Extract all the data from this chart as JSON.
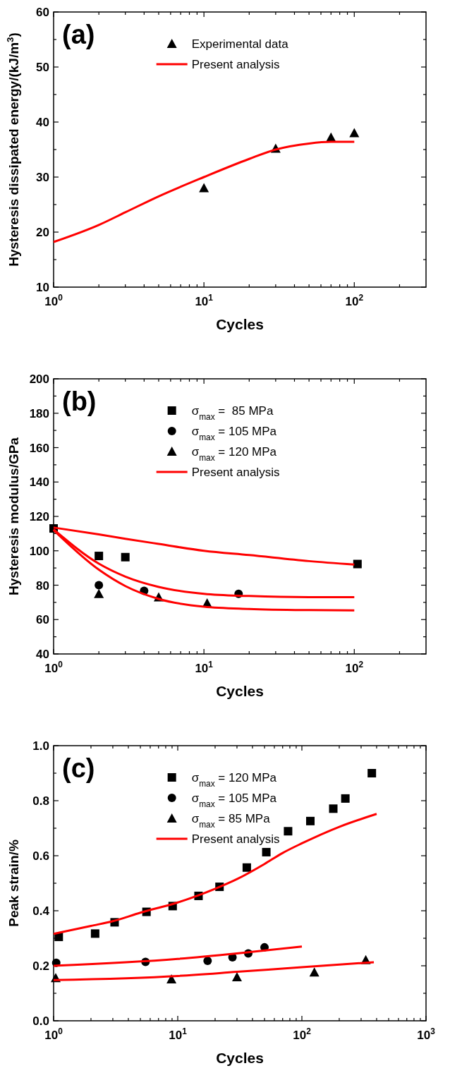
{
  "chart_data": [
    {
      "type": "scatter",
      "title": "(a)",
      "xlabel": "Cycles",
      "ylabel": "Hysteresis dissipated energy/(kJ/m$^{3}$)",
      "log": "x",
      "legend": "top",
      "grid": false,
      "xlim": [
        1,
        300
      ],
      "xticks": [
        {
          "value": 1,
          "label": "10$^{0}$"
        },
        {
          "value": 2,
          "label": null
        },
        {
          "value": 3,
          "label": null
        },
        {
          "value": 4,
          "label": null
        },
        {
          "value": 5,
          "label": null
        },
        {
          "value": 6,
          "label": null
        },
        {
          "value": 7,
          "label": null
        },
        {
          "value": 8,
          "label": null
        },
        {
          "value": 9,
          "label": null
        },
        {
          "value": 10,
          "label": "10$^{1}$"
        },
        {
          "value": 20,
          "label": null
        },
        {
          "value": 30,
          "label": null
        },
        {
          "value": 40,
          "label": null
        },
        {
          "value": 50,
          "label": null
        },
        {
          "value": 60,
          "label": null
        },
        {
          "value": 70,
          "label": null
        },
        {
          "value": 80,
          "label": null
        },
        {
          "value": 90,
          "label": null
        },
        {
          "value": 100,
          "label": "10$^{2}$"
        },
        {
          "value": 200,
          "label": null
        }
      ],
      "ylim": [
        10,
        60
      ],
      "yticks": [
        10,
        {
          "value": 15,
          "label": null
        },
        20,
        {
          "value": 25,
          "label": null
        },
        30,
        {
          "value": 35,
          "label": null
        },
        40,
        {
          "value": 45,
          "label": null
        },
        50,
        {
          "value": 55,
          "label": null
        },
        60
      ],
      "series": [
        {
          "name": "Experimental data",
          "type": "scatter",
          "marker": "triangle",
          "color": "#000000",
          "x": [
            10,
            30,
            70,
            100
          ],
          "values": [
            28,
            35.2,
            37.2,
            38
          ]
        },
        {
          "name": "Present analysis",
          "type": "line",
          "color": "#ff0000",
          "x": [
            1,
            2,
            3,
            5,
            10,
            20,
            30,
            50,
            70,
            100
          ],
          "values": [
            18.2,
            21.3,
            23.6,
            26.5,
            30,
            33.3,
            35,
            36.1,
            36.4,
            36.4
          ]
        }
      ]
    },
    {
      "type": "scatter",
      "title": "(b)",
      "xlabel": "Cycles",
      "ylabel": "Hysteresis modulus/GPa",
      "log": "x",
      "legend": "top",
      "grid": false,
      "xlim": [
        1,
        300
      ],
      "xticks": [
        {
          "value": 1,
          "label": "10$^{0}$"
        },
        {
          "value": 2,
          "label": null
        },
        {
          "value": 3,
          "label": null
        },
        {
          "value": 4,
          "label": null
        },
        {
          "value": 5,
          "label": null
        },
        {
          "value": 6,
          "label": null
        },
        {
          "value": 7,
          "label": null
        },
        {
          "value": 8,
          "label": null
        },
        {
          "value": 9,
          "label": null
        },
        {
          "value": 10,
          "label": "10$^{1}$"
        },
        {
          "value": 20,
          "label": null
        },
        {
          "value": 30,
          "label": null
        },
        {
          "value": 40,
          "label": null
        },
        {
          "value": 50,
          "label": null
        },
        {
          "value": 60,
          "label": null
        },
        {
          "value": 70,
          "label": null
        },
        {
          "value": 80,
          "label": null
        },
        {
          "value": 90,
          "label": null
        },
        {
          "value": 100,
          "label": "10$^{2}$"
        },
        {
          "value": 200,
          "label": null
        }
      ],
      "ylim": [
        40,
        200
      ],
      "yticks": [
        40,
        {
          "value": 50,
          "label": null
        },
        60,
        {
          "value": 70,
          "label": null
        },
        80,
        {
          "value": 90,
          "label": null
        },
        100,
        {
          "value": 110,
          "label": null
        },
        120,
        {
          "value": 130,
          "label": null
        },
        140,
        {
          "value": 150,
          "label": null
        },
        160,
        {
          "value": 170,
          "label": null
        },
        180,
        {
          "value": 190,
          "label": null
        },
        200
      ],
      "series": [
        {
          "name": "σ$_{max}$ =  85 MPa",
          "type": "scatter",
          "marker": "square",
          "color": "#000000",
          "x": [
            1,
            2,
            3,
            105
          ],
          "values": [
            113,
            97,
            96.3,
            92.3
          ]
        },
        {
          "name": "σ$_{max}$ = 105 MPa",
          "type": "scatter",
          "marker": "circle",
          "color": "#000000",
          "x": [
            2,
            4,
            17
          ],
          "values": [
            80,
            76.7,
            75
          ]
        },
        {
          "name": "σ$_{max}$ = 120 MPa",
          "type": "scatter",
          "marker": "triangle",
          "color": "#000000",
          "x": [
            2,
            5,
            10.5
          ],
          "values": [
            75,
            73,
            69.5
          ]
        },
        {
          "name": "Present analysis",
          "type": "line",
          "color": "#ff0000",
          "x": [
            1,
            2,
            3,
            5,
            10,
            20,
            50,
            100
          ],
          "values": [
            113.5,
            109.5,
            107,
            104,
            100,
            97.5,
            94,
            92
          ]
        },
        {
          "type": "line",
          "color": "#ff0000",
          "x": [
            1,
            2,
            3,
            5,
            10,
            20,
            50,
            100
          ],
          "values": [
            112.5,
            92.5,
            85,
            79,
            75,
            73.7,
            73,
            73
          ]
        },
        {
          "type": "line",
          "color": "#ff0000",
          "x": [
            1,
            2,
            3,
            5,
            10,
            20,
            50,
            100
          ],
          "values": [
            112,
            89,
            79.5,
            72,
            67.5,
            66.2,
            65.5,
            65.3
          ]
        }
      ]
    },
    {
      "type": "scatter",
      "title": "(c)",
      "xlabel": "Cycles",
      "ylabel": "Peak strain/%",
      "log": "x",
      "legend": "top",
      "grid": false,
      "xlim": [
        1,
        1000
      ],
      "xticks": [
        {
          "value": 1,
          "label": "10$^{0}$"
        },
        {
          "value": 2,
          "label": null
        },
        {
          "value": 3,
          "label": null
        },
        {
          "value": 4,
          "label": null
        },
        {
          "value": 5,
          "label": null
        },
        {
          "value": 6,
          "label": null
        },
        {
          "value": 7,
          "label": null
        },
        {
          "value": 8,
          "label": null
        },
        {
          "value": 9,
          "label": null
        },
        {
          "value": 10,
          "label": "10$^{1}$"
        },
        {
          "value": 20,
          "label": null
        },
        {
          "value": 30,
          "label": null
        },
        {
          "value": 40,
          "label": null
        },
        {
          "value": 50,
          "label": null
        },
        {
          "value": 60,
          "label": null
        },
        {
          "value": 70,
          "label": null
        },
        {
          "value": 80,
          "label": null
        },
        {
          "value": 90,
          "label": null
        },
        {
          "value": 100,
          "label": "10$^{2}$"
        },
        {
          "value": 200,
          "label": null
        },
        {
          "value": 300,
          "label": null
        },
        {
          "value": 400,
          "label": null
        },
        {
          "value": 500,
          "label": null
        },
        {
          "value": 600,
          "label": null
        },
        {
          "value": 700,
          "label": null
        },
        {
          "value": 800,
          "label": null
        },
        {
          "value": 900,
          "label": null
        },
        {
          "value": 1000,
          "label": "10$^{3}$"
        }
      ],
      "ylim": [
        0,
        1
      ],
      "yticks": [
        {
          "value": 0,
          "label": "0.0"
        },
        {
          "value": 0.1,
          "label": null
        },
        0.2,
        {
          "value": 0.3,
          "label": null
        },
        0.4,
        {
          "value": 0.5,
          "label": null
        },
        0.6,
        {
          "value": 0.7,
          "label": null
        },
        0.8,
        {
          "value": 0.9,
          "label": null
        },
        {
          "value": 1,
          "label": "1.0"
        }
      ],
      "series": [
        {
          "name": "σ$_{max}$ = 120 MPa",
          "type": "scatter",
          "marker": "square",
          "color": "#000000",
          "x": [
            1.1,
            2.16,
            3.1,
            5.6,
            9.1,
            14.7,
            21.7,
            36,
            51.7,
            77.4,
            117,
            179,
            224,
            366
          ],
          "values": [
            0.305,
            0.317,
            0.358,
            0.396,
            0.417,
            0.454,
            0.487,
            0.557,
            0.613,
            0.689,
            0.726,
            0.771,
            0.808,
            0.9
          ]
        },
        {
          "name": "σ$_{max}$ = 105 MPa",
          "type": "scatter",
          "marker": "circle",
          "color": "#000000",
          "x": [
            1.05,
            5.5,
            17.4,
            27.6,
            37,
            50
          ],
          "values": [
            0.211,
            0.214,
            0.218,
            0.231,
            0.245,
            0.267
          ]
        },
        {
          "name": "σ$_{max}$ = 85 MPa",
          "type": "scatter",
          "marker": "triangle",
          "color": "#000000",
          "x": [
            1.04,
            8.9,
            30,
            126,
            327
          ],
          "values": [
            0.156,
            0.151,
            0.159,
            0.176,
            0.221
          ]
        },
        {
          "name": "Present analysis",
          "type": "line",
          "color": "#ff0000",
          "x": [
            1,
            2,
            3,
            5,
            10,
            20,
            30,
            50,
            70,
            100,
            200,
            400
          ],
          "values": [
            0.316,
            0.345,
            0.362,
            0.393,
            0.43,
            0.48,
            0.515,
            0.57,
            0.61,
            0.645,
            0.705,
            0.752
          ]
        },
        {
          "type": "line",
          "color": "#ff0000",
          "x": [
            1,
            10,
            30,
            100
          ],
          "values": [
            0.2,
            0.225,
            0.245,
            0.27
          ]
        },
        {
          "type": "line",
          "color": "#ff0000",
          "x": [
            1,
            10,
            30,
            100,
            380
          ],
          "values": [
            0.148,
            0.163,
            0.178,
            0.195,
            0.213
          ]
        }
      ]
    }
  ]
}
